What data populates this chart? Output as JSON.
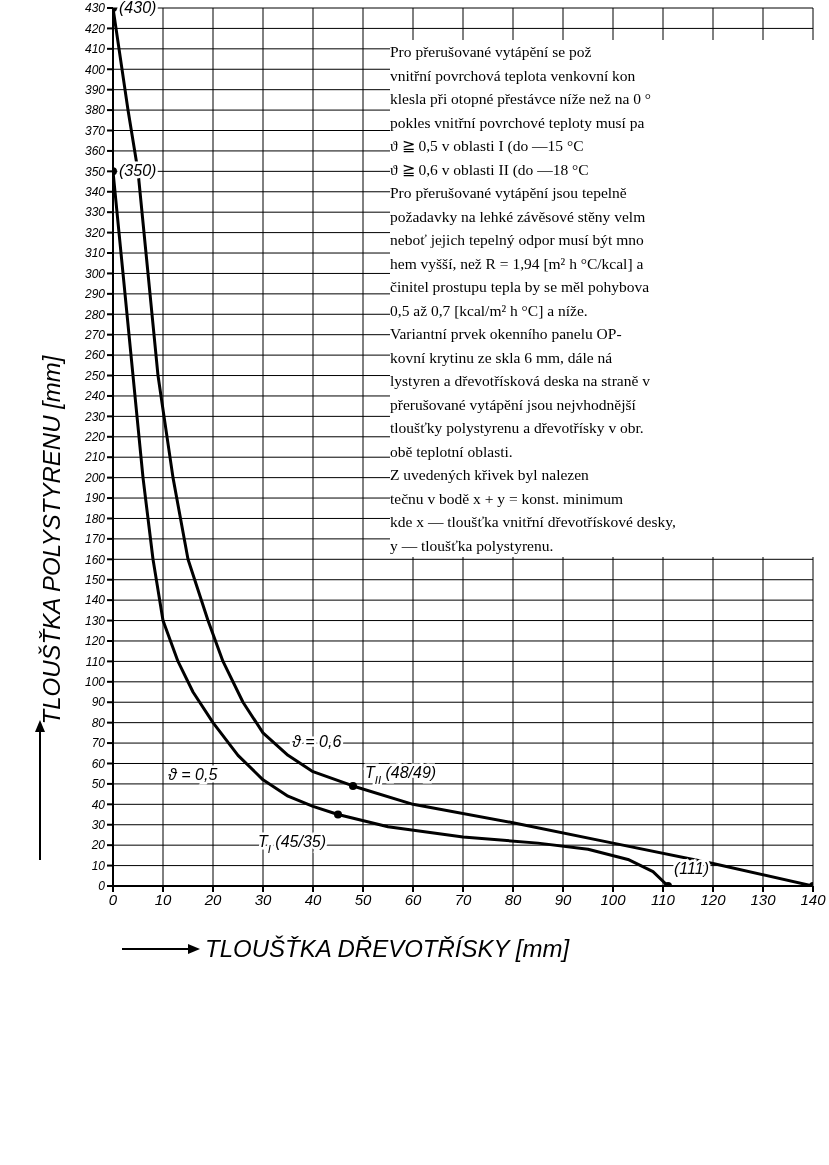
{
  "chart_data": {
    "type": "line",
    "xlabel": "TLOUŠŤKA DŘEVOTŘÍSKY [mm]",
    "ylabel": "TLOUŠŤKA POLYSTYRENU [mm]",
    "xlim": [
      0,
      140
    ],
    "xticks": [
      0,
      10,
      20,
      30,
      40,
      50,
      60,
      70,
      80,
      90,
      100,
      110,
      120,
      130,
      140
    ],
    "ylim": [
      0,
      430
    ],
    "yticks": [
      0,
      10,
      20,
      30,
      40,
      50,
      60,
      70,
      80,
      90,
      100,
      110,
      120,
      130,
      140,
      150,
      160,
      170,
      180,
      190,
      200,
      210,
      220,
      230,
      240,
      250,
      260,
      270,
      280,
      290,
      300,
      310,
      320,
      330,
      340,
      350,
      360,
      370,
      380,
      390,
      400,
      410,
      420,
      430
    ],
    "grid": true,
    "series": [
      {
        "color": "#000000",
        "x": [
          0,
          3,
          5,
          7,
          9,
          12,
          15,
          19,
          22,
          26,
          30,
          35,
          40,
          48,
          60,
          80,
          100,
          120,
          140
        ],
        "values": [
          430,
          380,
          350,
          300,
          250,
          200,
          160,
          130,
          110,
          90,
          75,
          64,
          56,
          49,
          40,
          31,
          21,
          11,
          0
        ]
      },
      {
        "color": "#000000",
        "x": [
          0,
          2,
          4,
          6,
          8,
          10,
          13,
          16,
          20,
          25,
          30,
          35,
          40,
          45,
          55,
          70,
          85,
          95,
          103,
          108,
          111
        ],
        "values": [
          350,
          300,
          250,
          200,
          160,
          130,
          110,
          95,
          80,
          64,
          52,
          44,
          39,
          35,
          29,
          24,
          21,
          18,
          13,
          7,
          0
        ]
      },
      {
        "type": "scatter",
        "color": "#000000",
        "x": [
          0,
          0,
          48,
          45,
          111,
          140
        ],
        "values": [
          430,
          350,
          49,
          35,
          0,
          0
        ]
      }
    ],
    "annotations": [
      {
        "text": "(430)",
        "x": 0,
        "y": 430
      },
      {
        "text": "(350)",
        "x": 0,
        "y": 350
      },
      {
        "text": "ϑ = 0,6",
        "x": 35,
        "y": 64
      },
      {
        "text": "ϑ = 0,5",
        "x": 25,
        "y": 64
      },
      {
        "text": "T$_{II}$ (48/49)",
        "x": 48,
        "y": 49
      },
      {
        "text": "T$_{I}$ (45/35)",
        "x": 45,
        "y": 35
      },
      {
        "text": "(111)",
        "x": 111,
        "y": 0
      },
      "Pro přerušované vytápění se pož",
      "vnitřní povrchová teplota venkovní kon",
      "klesla při otopné přestávce níže než na 0 °",
      "pokles vnitřní povrchové teploty musí pa",
      "ϑ ≧ 0,5 v oblasti I (do —15 °C",
      "ϑ ≧ 0,6 v oblasti II (do —18 °C",
      "Pro přerušované vytápění jsou tepelně",
      "požadavky na lehké závěsové stěny velm",
      "neboť jejich tepelný odpor musí být mno",
      "hem vyšší, než R = 1,94 [m² h °C/kcal] a",
      "činitel prostupu tepla by se měl pohybova",
      "0,5 až 0,7 [kcal/m² h °C] a níže.",
      "Variantní prvek okenního panelu OP-",
      "kovní krytinu ze skla 6 mm, dále ná",
      "lystyren a dřevotřísková deska na straně v",
      "přerušované vytápění jsou nejvhodnější",
      "tloušťky polystyrenu a dřevotřísky v obr.",
      "obě teplotní oblasti.",
      "Z uvedených křivek byl nalezen",
      "tečnu v bodě x + y = konst. minimum",
      "kde x — tloušťka vnitřní dřevotřískové desky,",
      "y — tloušťka polystyrenu."
    ]
  }
}
